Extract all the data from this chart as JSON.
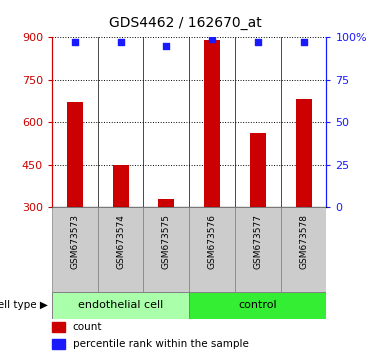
{
  "title": "GDS4462 / 162670_at",
  "samples": [
    "GSM673573",
    "GSM673574",
    "GSM673575",
    "GSM673576",
    "GSM673577",
    "GSM673578"
  ],
  "counts": [
    670,
    450,
    330,
    890,
    560,
    680
  ],
  "percentile_ranks": [
    97,
    97,
    95,
    99,
    97,
    97
  ],
  "y_min": 300,
  "y_max": 900,
  "y_ticks": [
    300,
    450,
    600,
    750,
    900
  ],
  "right_y_ticks": [
    0,
    25,
    50,
    75,
    100
  ],
  "right_y_labels": [
    "0",
    "25",
    "50",
    "75",
    "100%"
  ],
  "bar_color": "#cc0000",
  "dot_color": "#1a1aff",
  "groups": [
    {
      "label": "endothelial cell",
      "indices": [
        0,
        1,
        2
      ],
      "color": "#aaffaa"
    },
    {
      "label": "control",
      "indices": [
        3,
        4,
        5
      ],
      "color": "#33ee33"
    }
  ],
  "cell_type_label": "cell type",
  "left_axis_color": "#cc0000",
  "right_axis_color": "#1a1aff",
  "bar_bottom": 300,
  "bar_width": 0.35,
  "dot_size": 25
}
